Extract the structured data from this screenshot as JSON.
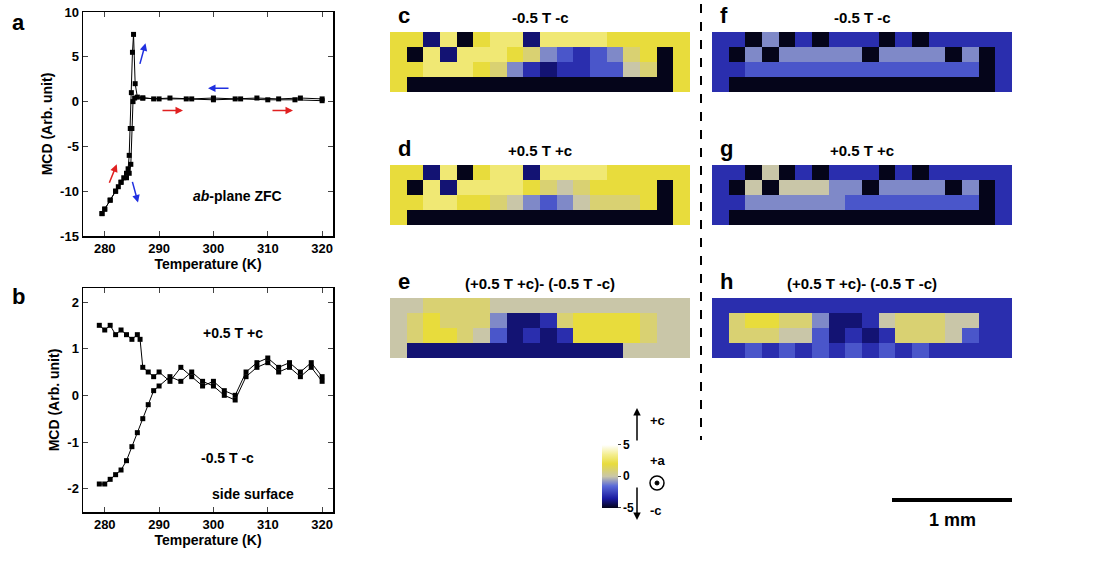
{
  "chart_data": [
    {
      "panel": "a",
      "type": "line",
      "marker": "square",
      "x_label": "Temperature (K)",
      "y_label": "MCD (Arb. unit)",
      "annotations": [
        "ab-plane ZFC"
      ],
      "series": [
        {
          "color": "#000000",
          "x": [
            320,
            316,
            312,
            308,
            304,
            300,
            296,
            292,
            289,
            287,
            286,
            285.6,
            285.3,
            285.1,
            284.9,
            284.7,
            284.5,
            284.3,
            284,
            283.5,
            283,
            282.5,
            282,
            281,
            280,
            279.5
          ],
          "values": [
            0.3,
            0.4,
            0.3,
            0.4,
            0.3,
            0.4,
            0.3,
            0.4,
            0.3,
            0.4,
            0.5,
            2,
            7.5,
            5.5,
            1,
            -3,
            -6,
            -7.5,
            -8,
            -8.5,
            -9,
            -9.5,
            -10,
            -11,
            -12,
            -12.5
          ]
        },
        {
          "color": "#000000",
          "x": [
            279.5,
            280,
            281,
            282,
            283,
            284,
            284.5,
            284.8,
            285,
            285.2,
            285.5,
            287,
            290,
            295,
            300,
            305,
            310,
            315,
            320
          ],
          "values": [
            -12.5,
            -12,
            -11,
            -10,
            -9,
            -8.5,
            -8,
            -7,
            -3,
            0,
            0.4,
            0.4,
            0.3,
            0.3,
            0.2,
            0.3,
            0.2,
            0.2,
            0.1
          ]
        }
      ],
      "xlim": [
        276,
        322
      ],
      "xticks": [
        280,
        290,
        300,
        310,
        320
      ],
      "ylim": [
        -15,
        10
      ],
      "yticks": [
        -15,
        -10,
        -5,
        0,
        5,
        10
      ]
    },
    {
      "panel": "b",
      "type": "line",
      "marker": "square",
      "x_label": "Temperature (K)",
      "y_label": "MCD (Arb. unit)",
      "annotations": [
        "side surface"
      ],
      "series": [
        {
          "name": "+0.5 T +c",
          "color": "#000000",
          "x": [
            279,
            280,
            281,
            282,
            283,
            284,
            285,
            286,
            286.5,
            287,
            288,
            289,
            290,
            292,
            294,
            296,
            298,
            300,
            302,
            304,
            306,
            308,
            310,
            312,
            314,
            316,
            318,
            320
          ],
          "values": [
            1.5,
            1.4,
            1.5,
            1.3,
            1.4,
            1.3,
            1.2,
            1.3,
            1.2,
            0.6,
            0.5,
            0.4,
            0.5,
            0.3,
            0.6,
            0.4,
            0.2,
            0.3,
            0.1,
            0.0,
            0.5,
            0.7,
            0.8,
            0.6,
            0.7,
            0.5,
            0.7,
            0.4
          ]
        },
        {
          "name": "-0.5 T -c",
          "color": "#000000",
          "x": [
            279,
            280,
            281,
            282,
            283,
            284,
            285,
            286,
            287,
            288,
            289,
            290,
            292,
            294,
            296,
            298,
            300,
            302,
            304,
            306,
            308,
            310,
            312,
            314,
            316,
            318,
            320
          ],
          "values": [
            -1.9,
            -1.9,
            -1.8,
            -1.7,
            -1.6,
            -1.4,
            -1.1,
            -0.8,
            -0.5,
            -0.2,
            0.1,
            0.2,
            0.4,
            0.3,
            0.5,
            0.3,
            0.2,
            0.0,
            -0.1,
            0.4,
            0.6,
            0.7,
            0.5,
            0.6,
            0.4,
            0.6,
            0.3
          ]
        }
      ],
      "xlim": [
        276,
        322
      ],
      "xticks": [
        280,
        290,
        300,
        310,
        320
      ],
      "ylim": [
        -2.5,
        2.3
      ],
      "yticks": [
        -2,
        -1,
        0,
        1,
        2
      ]
    },
    {
      "panel": "c",
      "type": "heatmap",
      "title": "-0.5 T -c",
      "tick_labels": false,
      "z": [
        [
          2,
          2,
          -4,
          3,
          -5,
          2,
          3,
          3,
          -4,
          3,
          3,
          3,
          3,
          2,
          2,
          2,
          2,
          2
        ],
        [
          2,
          -5,
          3,
          -4,
          3,
          3,
          3,
          2,
          1,
          -1,
          -2,
          -3,
          -2,
          -1,
          1,
          2,
          -5,
          2
        ],
        [
          2,
          2,
          3,
          3,
          3,
          2,
          1,
          -1,
          -3,
          -4,
          -3,
          -3,
          -2,
          -2,
          0,
          1,
          -5,
          2
        ],
        [
          2,
          -5,
          -5,
          -5,
          -5,
          -5,
          -5,
          -5,
          -5,
          -5,
          -5,
          -5,
          -5,
          -5,
          -5,
          -5,
          -5,
          2
        ]
      ]
    },
    {
      "panel": "d",
      "type": "heatmap",
      "title": "+0.5 T +c",
      "tick_labels": false,
      "z": [
        [
          2,
          2,
          -4,
          3,
          -5,
          2,
          3,
          3,
          -4,
          3,
          3,
          3,
          3,
          2,
          2,
          2,
          2,
          2
        ],
        [
          2,
          -5,
          3,
          -4,
          3,
          3,
          3,
          3,
          2,
          1,
          0,
          1,
          2,
          2,
          2,
          2,
          -5,
          2
        ],
        [
          2,
          2,
          3,
          3,
          2,
          2,
          1,
          0,
          -1,
          -2,
          -1,
          0,
          1,
          1,
          1,
          2,
          -5,
          2
        ],
        [
          2,
          -5,
          -5,
          -5,
          -5,
          -5,
          -5,
          -5,
          -5,
          -5,
          -5,
          -5,
          -5,
          -5,
          -5,
          -5,
          -5,
          2
        ]
      ]
    },
    {
      "panel": "e",
      "type": "heatmap",
      "title": "(+0.5 T +c)- (-0.5 T -c)",
      "tick_labels": false,
      "z": [
        [
          0,
          0,
          1,
          1,
          1,
          1,
          0,
          0,
          0,
          0,
          0,
          0,
          0,
          0,
          0,
          0,
          0,
          0
        ],
        [
          0,
          1,
          2,
          1,
          1,
          1,
          -1,
          -4,
          -4,
          -3,
          1,
          2,
          2,
          2,
          2,
          1,
          0,
          0
        ],
        [
          0,
          1,
          2,
          2,
          1,
          0,
          -2,
          -4,
          -3,
          -4,
          -3,
          2,
          2,
          2,
          2,
          1,
          0,
          0
        ],
        [
          0,
          -4,
          -4,
          -4,
          -4,
          -4,
          -4,
          -4,
          -4,
          -4,
          -4,
          -4,
          -4,
          -4,
          0,
          0,
          0,
          0
        ]
      ]
    },
    {
      "panel": "f",
      "type": "heatmap",
      "title": "-0.5 T -c",
      "tick_labels": false,
      "z": [
        [
          -3,
          -3,
          -5,
          -1,
          -5,
          -3,
          -5,
          -3,
          -3,
          -3,
          -5,
          -3,
          -5,
          -3,
          -3,
          -3,
          -3,
          -3
        ],
        [
          -3,
          -5,
          -1,
          -5,
          -1,
          -1,
          -1,
          -1,
          -1,
          -5,
          -1,
          -1,
          -1,
          -1,
          -5,
          -1,
          -5,
          -3
        ],
        [
          -3,
          -3,
          -2,
          -2,
          -2,
          -2,
          -2,
          -2,
          -2,
          -2,
          -2,
          -2,
          -2,
          -2,
          -2,
          -2,
          -5,
          -3
        ],
        [
          -3,
          -5,
          -5,
          -5,
          -5,
          -5,
          -5,
          -5,
          -5,
          -5,
          -5,
          -5,
          -5,
          -5,
          -5,
          -5,
          -5,
          -3
        ]
      ]
    },
    {
      "panel": "g",
      "type": "heatmap",
      "title": "+0.5 T +c",
      "tick_labels": false,
      "z": [
        [
          -3,
          -3,
          -5,
          0,
          -5,
          -3,
          -5,
          -3,
          -3,
          -3,
          -5,
          -3,
          -5,
          -3,
          -3,
          -3,
          -3,
          -3
        ],
        [
          -3,
          -5,
          0,
          -5,
          0,
          0,
          0,
          -1,
          -1,
          -5,
          -1,
          -1,
          -1,
          -1,
          -5,
          -1,
          -5,
          -3
        ],
        [
          -3,
          -3,
          -1,
          -1,
          -1,
          -1,
          -1,
          -1,
          -2,
          -2,
          -2,
          -2,
          -2,
          -2,
          -2,
          -2,
          -5,
          -3
        ],
        [
          -3,
          -5,
          -5,
          -5,
          -5,
          -5,
          -5,
          -5,
          -5,
          -5,
          -5,
          -5,
          -5,
          -5,
          -5,
          -5,
          -5,
          -3
        ]
      ]
    },
    {
      "panel": "h",
      "type": "heatmap",
      "title": "(+0.5 T +c)- (-0.5 T -c)",
      "tick_labels": false,
      "z": [
        [
          -3,
          -3,
          -3,
          -3,
          -3,
          -3,
          -3,
          -3,
          -3,
          -3,
          -3,
          -3,
          -3,
          -3,
          -3,
          -3,
          -3,
          -3
        ],
        [
          -3,
          1,
          2,
          2,
          1,
          1,
          -1,
          -4,
          -4,
          -3,
          0,
          1,
          1,
          1,
          0,
          0,
          -3,
          -3
        ],
        [
          -3,
          1,
          1,
          1,
          0,
          0,
          -2,
          -4,
          -3,
          -4,
          -3,
          1,
          1,
          1,
          0,
          -2,
          -3,
          -3
        ],
        [
          -3,
          -3,
          -2,
          -3,
          -2,
          -3,
          -2,
          -3,
          -2,
          -3,
          -2,
          -3,
          -2,
          -3,
          -3,
          -3,
          -3,
          -3
        ]
      ]
    }
  ],
  "colorbar": {
    "range": [
      -5,
      5
    ],
    "ticks": [
      5,
      0,
      -5
    ]
  },
  "directions": [
    "+c",
    "+a",
    "-c"
  ],
  "scale_bar": "1 mm"
}
